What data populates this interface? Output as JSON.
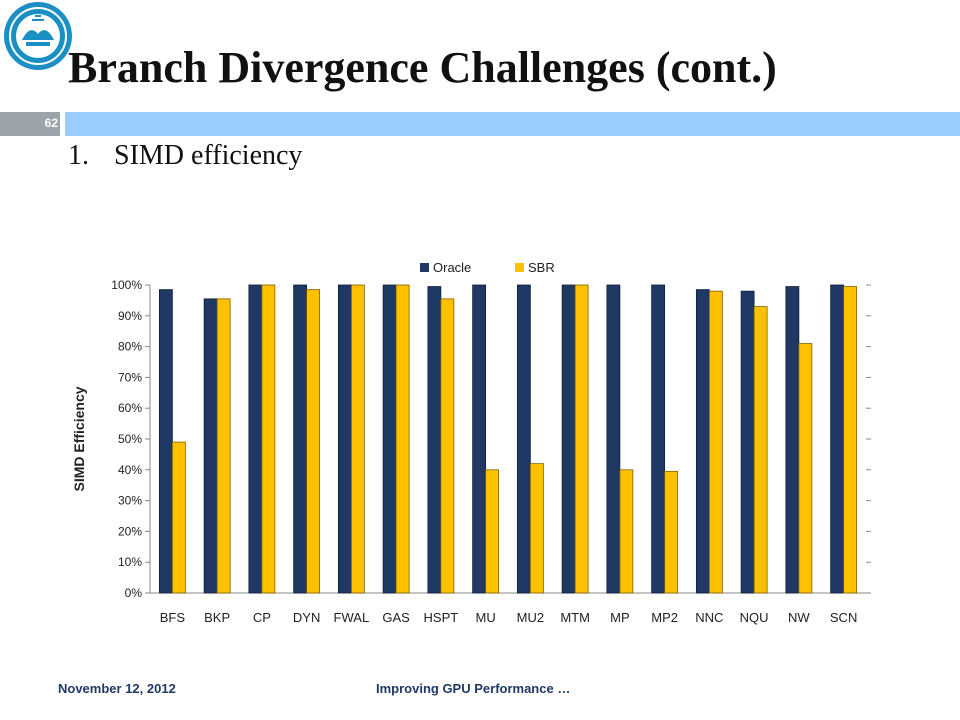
{
  "slide": {
    "title": "Branch Divergence Challenges (cont.)",
    "number": "62",
    "bullet_number": "1.",
    "bullet_text": "SIMD efficiency",
    "footer_date": "November 12, 2012",
    "footer_title": "Improving GPU Performance …"
  },
  "colors": {
    "accent_band": "#99ccff",
    "oracle": "#1f3864",
    "sbr": "#ffc000",
    "footer_text": "#1f3864"
  },
  "icons": {
    "logo": "university-seal-logo"
  },
  "chart_data": {
    "type": "bar",
    "categories": [
      "BFS",
      "BKP",
      "CP",
      "DYN",
      "FWAL",
      "GAS",
      "HSPT",
      "MU",
      "MU2",
      "MTM",
      "MP",
      "MP2",
      "NNC",
      "NQU",
      "NW",
      "SCN"
    ],
    "series": [
      {
        "name": "Oracle",
        "values": [
          98.5,
          95.5,
          100,
          100,
          100,
          100,
          99.5,
          100,
          100,
          100,
          100,
          100,
          98.5,
          98,
          99.5,
          100
        ]
      },
      {
        "name": "SBR",
        "values": [
          49,
          95.5,
          100,
          98.5,
          100,
          100,
          95.5,
          40,
          42,
          100,
          40,
          39.5,
          98,
          93,
          81,
          99.5
        ]
      }
    ],
    "ylabel": "SIMD Efficiency",
    "xlabel": "",
    "ylim": [
      0,
      100
    ],
    "yticks": [
      "0%",
      "10%",
      "20%",
      "30%",
      "40%",
      "50%",
      "60%",
      "70%",
      "80%",
      "90%",
      "100%"
    ],
    "legend": "top-center",
    "grid": false
  }
}
